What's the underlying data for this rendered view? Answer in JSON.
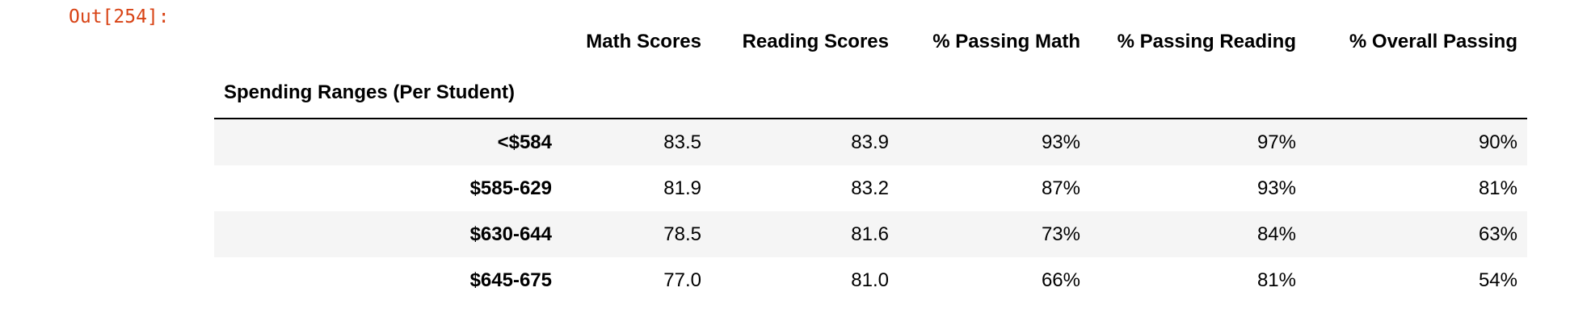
{
  "notebook": {
    "output_prompt": "Out[254]:"
  },
  "table": {
    "index_name": "Spending Ranges (Per Student)",
    "columns": [
      "Math Scores",
      "Reading Scores",
      "% Passing Math",
      "% Passing Reading",
      "% Overall Passing"
    ],
    "rows": [
      {
        "index": "<$584",
        "values": [
          "83.5",
          "83.9",
          "93%",
          "97%",
          "90%"
        ]
      },
      {
        "index": "$585-629",
        "values": [
          "81.9",
          "83.2",
          "87%",
          "93%",
          "81%"
        ]
      },
      {
        "index": "$630-644",
        "values": [
          "78.5",
          "81.6",
          "73%",
          "84%",
          "63%"
        ]
      },
      {
        "index": "$645-675",
        "values": [
          "77.0",
          "81.0",
          "66%",
          "81%",
          "54%"
        ]
      }
    ]
  },
  "colors": {
    "prompt": "#d84315",
    "row_stripe": "#f5f5f5",
    "header_rule": "#000000",
    "text": "#000000",
    "background": "#ffffff"
  }
}
